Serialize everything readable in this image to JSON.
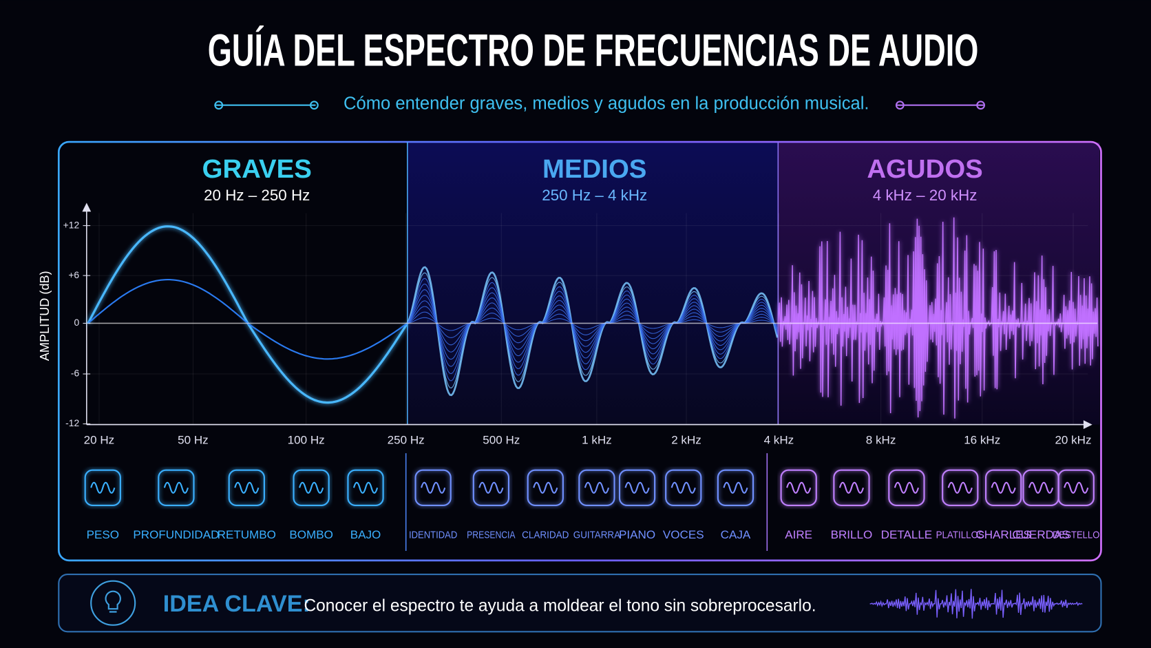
{
  "header": {
    "title": "GUÍA DEL ESPECTRO DE FRECUENCIAS DE AUDIO",
    "subtitle": "Cómo entender graves, medios y agudos en la producción musical."
  },
  "axis": {
    "y_label": "AMPLITUD (dB)",
    "y_ticks": [
      "+12",
      "+6",
      "0",
      "-6",
      "-12"
    ],
    "x_ticks": [
      "20 Hz",
      "50 Hz",
      "100 Hz",
      "250 Hz",
      "500 Hz",
      "1 kHz",
      "2 kHz",
      "4 kHz",
      "8 kHz",
      "16 kHz",
      "20 kHz"
    ]
  },
  "bands": [
    {
      "name": "GRAVES",
      "range": "20 Hz – 250 Hz",
      "items": [
        "PESO",
        "PROFUNDIDAD",
        "RETUMBO",
        "BOMBO",
        "BAJO"
      ]
    },
    {
      "name": "MEDIOS",
      "range": "250 Hz – 4 kHz",
      "items": [
        "IDENTIDAD",
        "PRESENCIA",
        "CLARIDAD",
        "GUITARRA",
        "PIANO",
        "VOCES",
        "CAJA"
      ]
    },
    {
      "name": "AGUDOS",
      "range": "4 kHz – 20 kHz",
      "items": [
        "AIRE",
        "BRILLO",
        "DETALLE",
        "PLATILLOS",
        "CHARLES",
        "CUERDAS",
        "DESTELLO"
      ]
    }
  ],
  "key_idea": {
    "label": "IDEA CLAVE:",
    "text": "Conocer el espectro te ayuda a moldear el tono sin sobreprocesarlo."
  }
}
